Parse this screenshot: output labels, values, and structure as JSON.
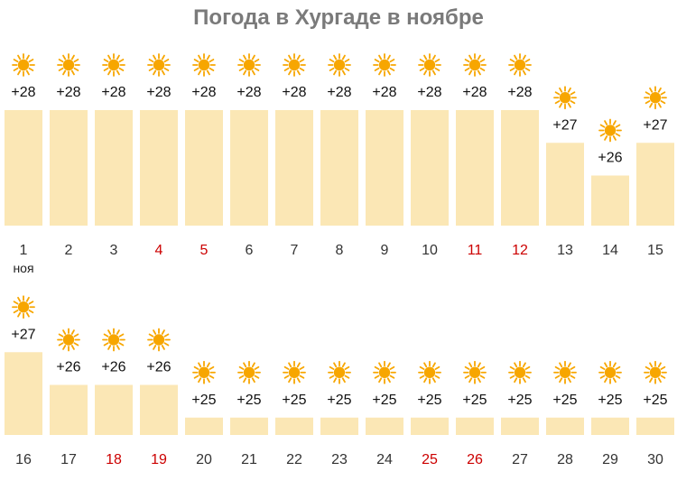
{
  "chart_data": {
    "type": "bar",
    "title": "Погода в Хургаде в ноябре",
    "month_label": "ноя",
    "value_prefix": "+",
    "weather_icon": "sun-icon",
    "colors": {
      "bar": "#fbe7b5",
      "sun": "#f7a600",
      "weekday": "#333333",
      "weekend": "#cc0000"
    },
    "categories": [
      "1",
      "2",
      "3",
      "4",
      "5",
      "6",
      "7",
      "8",
      "9",
      "10",
      "11",
      "12",
      "13",
      "14",
      "15",
      "16",
      "17",
      "18",
      "19",
      "20",
      "21",
      "22",
      "23",
      "24",
      "25",
      "26",
      "27",
      "28",
      "29",
      "30"
    ],
    "values": [
      28,
      28,
      28,
      28,
      28,
      28,
      28,
      28,
      28,
      28,
      28,
      28,
      27,
      26,
      27,
      27,
      26,
      26,
      26,
      25,
      25,
      25,
      25,
      25,
      25,
      25,
      25,
      25,
      25,
      25
    ],
    "weekend_days": [
      "4",
      "5",
      "11",
      "12",
      "18",
      "19",
      "25",
      "26"
    ]
  }
}
